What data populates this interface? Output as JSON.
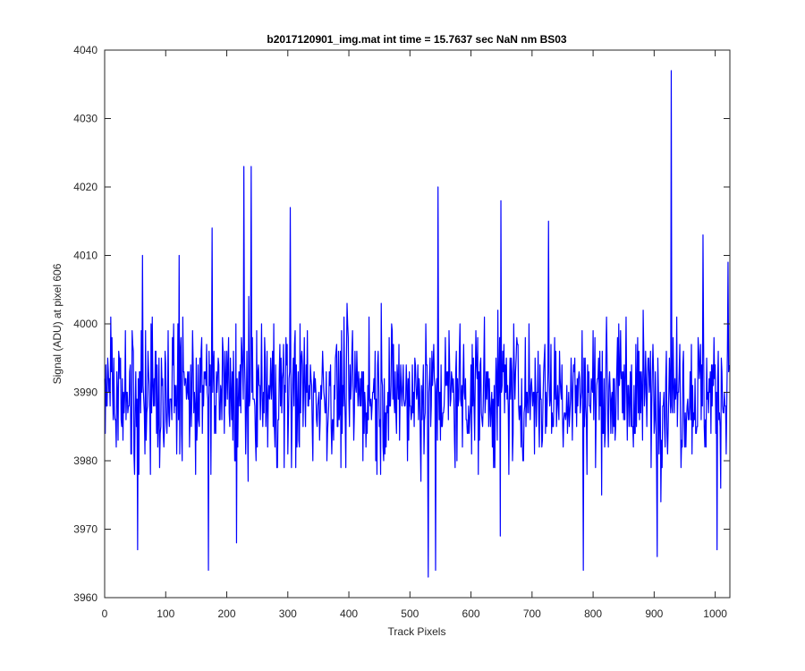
{
  "chart_data": {
    "type": "line",
    "title": "b2017120901_img.mat int time = 15.7637 sec  NaN nm BS03",
    "xlabel": "Track Pixels",
    "ylabel": "Signal (ADU) at pixel 606",
    "xlim": [
      0,
      1024
    ],
    "ylim": [
      3960,
      4040
    ],
    "xticks": [
      0,
      100,
      200,
      300,
      400,
      500,
      600,
      700,
      800,
      900,
      1000
    ],
    "yticks": [
      3960,
      3970,
      3980,
      3990,
      4000,
      4010,
      4020,
      4030,
      4040
    ],
    "grid": false,
    "legend": "none",
    "box": true,
    "series": [
      {
        "color": "#0000ff",
        "n_points": 1024,
        "mean": 3990,
        "peaks": [
          {
            "x": 62,
            "y": 4010
          },
          {
            "x": 122,
            "y": 4010
          },
          {
            "x": 176,
            "y": 4014
          },
          {
            "x": 228,
            "y": 4023
          },
          {
            "x": 240,
            "y": 4023
          },
          {
            "x": 304,
            "y": 4017
          },
          {
            "x": 546,
            "y": 4020
          },
          {
            "x": 649,
            "y": 4018
          },
          {
            "x": 727,
            "y": 4015
          },
          {
            "x": 928,
            "y": 4037
          },
          {
            "x": 980,
            "y": 4013
          },
          {
            "x": 1021,
            "y": 4009
          }
        ],
        "troughs": [
          {
            "x": 54,
            "y": 3967
          },
          {
            "x": 170,
            "y": 3964
          },
          {
            "x": 216,
            "y": 3968
          },
          {
            "x": 530,
            "y": 3963
          },
          {
            "x": 542,
            "y": 3964
          },
          {
            "x": 648,
            "y": 3969
          },
          {
            "x": 784,
            "y": 3964
          },
          {
            "x": 905,
            "y": 3966
          },
          {
            "x": 1003,
            "y": 3967
          }
        ]
      }
    ]
  }
}
